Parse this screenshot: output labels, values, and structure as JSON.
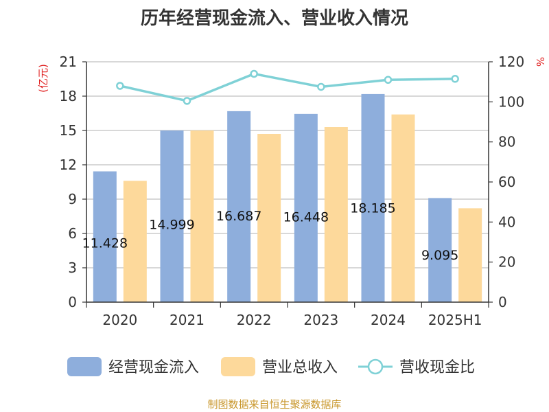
{
  "chart_data": {
    "type": "bar",
    "title": "历年经营现金流入、营业收入情况",
    "categories": [
      "2020",
      "2021",
      "2022",
      "2023",
      "2024",
      "2025H1"
    ],
    "series": [
      {
        "name": "经营现金流入",
        "type": "bar",
        "axis": "left",
        "color": "#8eaedc",
        "values": [
          11.428,
          14.999,
          16.687,
          16.448,
          18.185,
          9.095
        ],
        "labels": [
          "11.428",
          "14.999",
          "16.687",
          "16.448",
          "18.185",
          "9.095"
        ]
      },
      {
        "name": "营业总收入",
        "type": "bar",
        "axis": "left",
        "color": "#fdd99b",
        "values": [
          10.6,
          15.0,
          14.7,
          15.3,
          16.4,
          8.2
        ]
      },
      {
        "name": "营收现金比",
        "type": "line",
        "axis": "right",
        "color": "#7fd1d6",
        "values": [
          108,
          100.5,
          114,
          107.5,
          111,
          111.5
        ]
      }
    ],
    "y_left": {
      "unit": "(亿元)",
      "range": [
        0,
        21
      ],
      "ticks": [
        0,
        3,
        6,
        9,
        12,
        15,
        18,
        21
      ]
    },
    "y_right": {
      "unit": "%",
      "range": [
        0,
        120
      ],
      "ticks": [
        0,
        20,
        40,
        60,
        80,
        100,
        120
      ]
    },
    "grid": true,
    "legend_position": "bottom"
  },
  "source": "制图数据来自恒生聚源数据库"
}
